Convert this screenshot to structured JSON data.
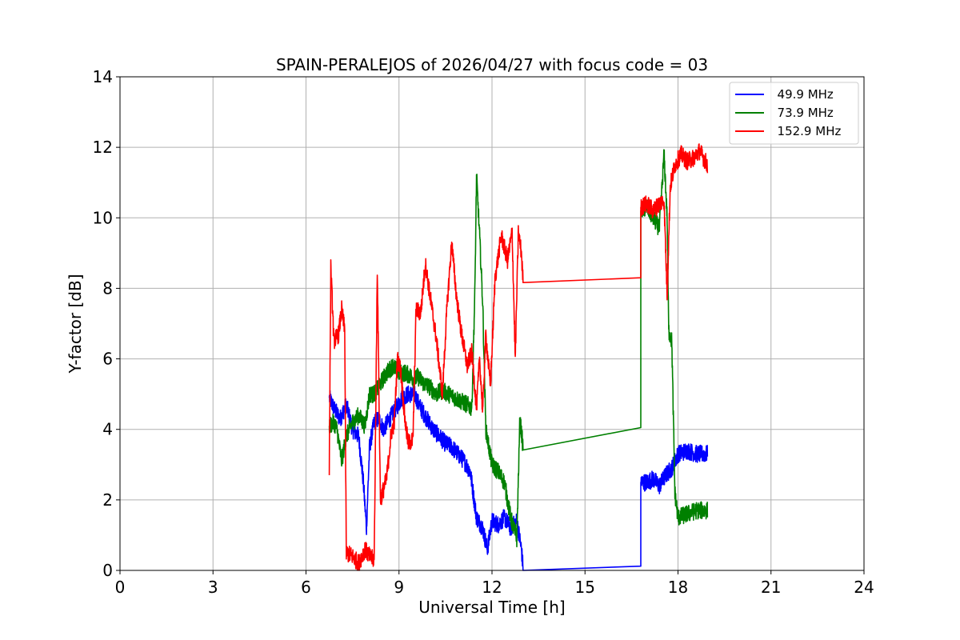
{
  "chart_data": {
    "type": "line",
    "title": "SPAIN-PERALEJOS of 2026/04/27 with focus code = 03",
    "xlabel": "Universal Time [h]",
    "ylabel": "Y-factor [dB]",
    "xlim": [
      0,
      24
    ],
    "ylim": [
      0,
      14
    ],
    "xticks": [
      0,
      3,
      6,
      9,
      12,
      15,
      18,
      21,
      24
    ],
    "yticks": [
      0,
      2,
      4,
      6,
      8,
      10,
      12,
      14
    ],
    "grid": true,
    "legend_position": "top-right",
    "series": [
      {
        "name": "  49.9 MHz",
        "color": "#0000ff",
        "points": [
          [
            6.75,
            4.9
          ],
          [
            6.9,
            4.6
          ],
          [
            7.1,
            4.3
          ],
          [
            7.3,
            4.7
          ],
          [
            7.5,
            4.0
          ],
          [
            7.7,
            3.8
          ],
          [
            7.85,
            2.5
          ],
          [
            7.95,
            1.2
          ],
          [
            8.05,
            3.5
          ],
          [
            8.2,
            4.2
          ],
          [
            8.35,
            4.3
          ],
          [
            8.5,
            4.0
          ],
          [
            8.7,
            4.3
          ],
          [
            8.9,
            4.6
          ],
          [
            9.1,
            4.9
          ],
          [
            9.3,
            5.0
          ],
          [
            9.5,
            5.0
          ],
          [
            9.7,
            4.6
          ],
          [
            9.9,
            4.3
          ],
          [
            10.1,
            4.0
          ],
          [
            10.3,
            3.8
          ],
          [
            10.5,
            3.6
          ],
          [
            10.7,
            3.5
          ],
          [
            10.9,
            3.3
          ],
          [
            11.1,
            3.1
          ],
          [
            11.3,
            2.8
          ],
          [
            11.5,
            1.5
          ],
          [
            11.7,
            1.2
          ],
          [
            11.85,
            0.6
          ],
          [
            12.0,
            1.4
          ],
          [
            12.2,
            1.3
          ],
          [
            12.4,
            1.5
          ],
          [
            12.6,
            1.2
          ],
          [
            12.8,
            1.4
          ],
          [
            12.95,
            0.6
          ],
          [
            13.0,
            0.08
          ],
          [
            16.8,
            0.12
          ],
          [
            16.8,
            2.5
          ],
          [
            17.0,
            2.5
          ],
          [
            17.2,
            2.6
          ],
          [
            17.4,
            2.4
          ],
          [
            17.6,
            2.7
          ],
          [
            17.8,
            2.9
          ],
          [
            18.0,
            3.3
          ],
          [
            18.3,
            3.4
          ],
          [
            18.6,
            3.3
          ],
          [
            18.95,
            3.3
          ]
        ]
      },
      {
        "name": "  73.9 MHz",
        "color": "#008000",
        "points": [
          [
            6.75,
            4.1
          ],
          [
            6.9,
            4.2
          ],
          [
            7.0,
            4.0
          ],
          [
            7.15,
            3.1
          ],
          [
            7.3,
            3.8
          ],
          [
            7.5,
            4.2
          ],
          [
            7.7,
            4.4
          ],
          [
            7.9,
            4.1
          ],
          [
            8.05,
            5.0
          ],
          [
            8.2,
            5.0
          ],
          [
            8.4,
            5.3
          ],
          [
            8.6,
            5.6
          ],
          [
            8.8,
            5.8
          ],
          [
            9.0,
            5.6
          ],
          [
            9.2,
            5.6
          ],
          [
            9.4,
            5.5
          ],
          [
            9.5,
            5.4
          ],
          [
            9.6,
            5.5
          ],
          [
            9.8,
            5.3
          ],
          [
            10.0,
            5.2
          ],
          [
            10.2,
            5.0
          ],
          [
            10.4,
            5.1
          ],
          [
            10.6,
            5.0
          ],
          [
            10.8,
            4.9
          ],
          [
            11.0,
            4.8
          ],
          [
            11.2,
            4.7
          ],
          [
            11.35,
            4.6
          ],
          [
            11.45,
            8.0
          ],
          [
            11.5,
            11.2
          ],
          [
            11.6,
            9.5
          ],
          [
            11.7,
            7.6
          ],
          [
            11.8,
            4.0
          ],
          [
            12.0,
            3.0
          ],
          [
            12.2,
            2.8
          ],
          [
            12.4,
            2.5
          ],
          [
            12.6,
            1.5
          ],
          [
            12.8,
            0.9
          ],
          [
            12.9,
            4.3
          ],
          [
            13.0,
            3.5
          ],
          [
            16.8,
            4.05
          ],
          [
            16.8,
            10.2
          ],
          [
            17.0,
            10.3
          ],
          [
            17.2,
            10.0
          ],
          [
            17.4,
            9.7
          ],
          [
            17.55,
            11.8
          ],
          [
            17.65,
            10.0
          ],
          [
            17.7,
            6.8
          ],
          [
            17.8,
            6.5
          ],
          [
            17.9,
            2.2
          ],
          [
            18.0,
            1.5
          ],
          [
            18.3,
            1.6
          ],
          [
            18.6,
            1.7
          ],
          [
            18.95,
            1.7
          ]
        ]
      },
      {
        "name": "  152.9 MHz",
        "color": "#ff0000",
        "points": [
          [
            6.75,
            2.7
          ],
          [
            6.8,
            8.6
          ],
          [
            6.9,
            6.5
          ],
          [
            7.05,
            6.7
          ],
          [
            7.15,
            7.4
          ],
          [
            7.25,
            6.8
          ],
          [
            7.3,
            0.5
          ],
          [
            7.5,
            0.4
          ],
          [
            7.7,
            0.2
          ],
          [
            7.9,
            0.6
          ],
          [
            8.05,
            0.4
          ],
          [
            8.2,
            0.3
          ],
          [
            8.3,
            8.6
          ],
          [
            8.4,
            2.0
          ],
          [
            8.6,
            2.6
          ],
          [
            8.75,
            3.9
          ],
          [
            8.85,
            4.2
          ],
          [
            8.95,
            6.0
          ],
          [
            9.05,
            5.7
          ],
          [
            9.2,
            4.2
          ],
          [
            9.3,
            3.6
          ],
          [
            9.45,
            3.7
          ],
          [
            9.55,
            7.4
          ],
          [
            9.7,
            7.3
          ],
          [
            9.85,
            8.7
          ],
          [
            10.0,
            7.8
          ],
          [
            10.2,
            6.6
          ],
          [
            10.4,
            5.0
          ],
          [
            10.55,
            7.5
          ],
          [
            10.7,
            9.3
          ],
          [
            10.85,
            7.8
          ],
          [
            11.0,
            6.8
          ],
          [
            11.2,
            5.8
          ],
          [
            11.35,
            6.2
          ],
          [
            11.5,
            4.6
          ],
          [
            11.6,
            6.0
          ],
          [
            11.7,
            4.5
          ],
          [
            11.8,
            6.7
          ],
          [
            11.95,
            5.2
          ],
          [
            12.1,
            8.3
          ],
          [
            12.3,
            9.5
          ],
          [
            12.5,
            8.8
          ],
          [
            12.65,
            9.6
          ],
          [
            12.75,
            6.0
          ],
          [
            12.85,
            9.6
          ],
          [
            12.95,
            9.0
          ],
          [
            13.0,
            8.2
          ],
          [
            16.8,
            8.3
          ],
          [
            16.8,
            10.3
          ],
          [
            17.0,
            10.4
          ],
          [
            17.2,
            10.2
          ],
          [
            17.4,
            10.4
          ],
          [
            17.55,
            10.5
          ],
          [
            17.65,
            7.8
          ],
          [
            17.75,
            10.9
          ],
          [
            17.9,
            11.5
          ],
          [
            18.1,
            11.8
          ],
          [
            18.3,
            11.6
          ],
          [
            18.5,
            11.7
          ],
          [
            18.7,
            11.9
          ],
          [
            18.95,
            11.5
          ]
        ]
      }
    ]
  }
}
